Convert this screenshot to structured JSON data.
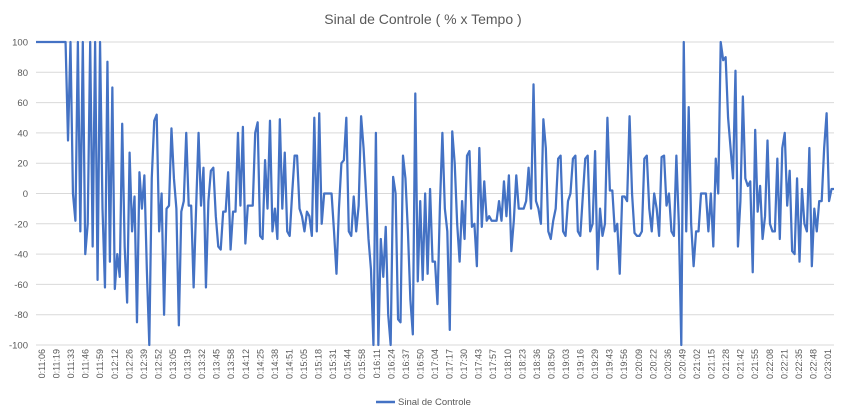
{
  "chart_data": {
    "type": "line",
    "title": "Sinal de Controle ( % x Tempo )",
    "xlabel": "",
    "ylabel": "",
    "ylim": [
      -100,
      100
    ],
    "yticks": [
      100,
      80,
      60,
      40,
      20,
      0,
      -20,
      -40,
      -60,
      -80,
      -100
    ],
    "x_tick_labels": [
      "0:11:06",
      "0:11:19",
      "0:11:33",
      "0:11:46",
      "0:11:59",
      "0:12:12",
      "0:12:26",
      "0:12:39",
      "0:12:52",
      "0:13:05",
      "0:13:19",
      "0:13:32",
      "0:13:45",
      "0:13:58",
      "0:14:12",
      "0:14:25",
      "0:14:38",
      "0:14:51",
      "0:15:05",
      "0:15:18",
      "0:15:31",
      "0:15:44",
      "0:15:58",
      "0:16:11",
      "0:16:24",
      "0:16:37",
      "0:16:50",
      "0:17:04",
      "0:17:17",
      "0:17:30",
      "0:17:43",
      "0:17:57",
      "0:18:10",
      "0:18:23",
      "0:18:36",
      "0:18:50",
      "0:19:03",
      "0:19:16",
      "0:19:29",
      "0:19:43",
      "0:19:56",
      "0:20:09",
      "0:20:22",
      "0:20:36",
      "0:20:49",
      "0:21:02",
      "0:21:15",
      "0:21:28",
      "0:21:42",
      "0:21:55",
      "0:22:08",
      "0:22:21",
      "0:22:35",
      "0:22:48",
      "0:23:01"
    ],
    "grid": true,
    "legend_position": "bottom",
    "colors": {
      "series": "#4472c4",
      "grid": "#d9d9d9",
      "text": "#595959"
    },
    "series": [
      {
        "name": "Sinal de Controle",
        "values": [
          100,
          100,
          100,
          100,
          100,
          100,
          100,
          100,
          100,
          100,
          100,
          100,
          100,
          35,
          100,
          0,
          -18,
          100,
          -25,
          100,
          -40,
          -20,
          100,
          -35,
          100,
          -57,
          100,
          -10,
          -62,
          87,
          -45,
          70,
          -63,
          -40,
          -55,
          46,
          -35,
          -72,
          27,
          -25,
          -2,
          -85,
          14,
          -10,
          12,
          -50,
          -100,
          10,
          48,
          52,
          -25,
          0,
          -80,
          -10,
          -8,
          43,
          10,
          -10,
          -87,
          -12,
          -5,
          40,
          -8,
          -8,
          -62,
          -10,
          40,
          -8,
          17,
          -62,
          -5,
          15,
          17,
          -15,
          -35,
          -37,
          -12,
          -12,
          14,
          -37,
          -12,
          -12,
          40,
          -8,
          44,
          -33,
          -8,
          -8,
          -8,
          40,
          47,
          -28,
          -30,
          22,
          -10,
          48,
          -25,
          -10,
          -30,
          49,
          -10,
          27,
          -25,
          -28,
          0,
          25,
          25,
          -10,
          -15,
          -25,
          -12,
          -15,
          -28,
          50,
          -25,
          53,
          -20,
          0,
          0,
          0,
          0,
          -25,
          -53,
          -10,
          20,
          22,
          50,
          -25,
          -28,
          -2,
          -25,
          -8,
          51,
          30,
          0,
          -30,
          -50,
          -100,
          40,
          -100,
          -30,
          -55,
          -22,
          -80,
          -100,
          11,
          0,
          -83,
          -85,
          25,
          10,
          -25,
          -70,
          -93,
          66,
          -58,
          -5,
          -57,
          0,
          -53,
          3,
          -45,
          -45,
          -73,
          -8,
          40,
          -10,
          -25,
          -90,
          41,
          20,
          -20,
          -45,
          -5,
          -30,
          25,
          28,
          -22,
          -20,
          -48,
          30,
          -22,
          8,
          -18,
          -15,
          -18,
          -18,
          -18,
          -5,
          -18,
          8,
          -15,
          12,
          -38,
          -18,
          12,
          -10,
          -10,
          -10,
          -5,
          17,
          -10,
          72,
          -5,
          -10,
          -20,
          49,
          30,
          -25,
          -30,
          -18,
          -10,
          23,
          25,
          -25,
          -28,
          -5,
          0,
          23,
          25,
          -25,
          -28,
          -2,
          23,
          25,
          -25,
          -20,
          28,
          -50,
          -10,
          -28,
          -20,
          50,
          2,
          2,
          -25,
          -20,
          -53,
          -2,
          -2,
          -5,
          51,
          0,
          -26,
          -28,
          -28,
          -25,
          23,
          25,
          -10,
          -25,
          0,
          -10,
          -28,
          24,
          25,
          -8,
          0,
          -25,
          -28,
          25,
          -20,
          -100,
          100,
          -25,
          57,
          -20,
          -48,
          -25,
          -25,
          0,
          0,
          0,
          -25,
          0,
          -35,
          23,
          0,
          100,
          88,
          90,
          50,
          30,
          10,
          81,
          -35,
          -5,
          64,
          10,
          5,
          8,
          -52,
          42,
          -12,
          5,
          -30,
          -15,
          35,
          -20,
          -25,
          -25,
          23,
          -30,
          30,
          40,
          -8,
          15,
          -38,
          -40,
          10,
          -45,
          3,
          -20,
          -25,
          30,
          -48,
          -10,
          -25,
          -5,
          -5,
          30,
          53,
          -5,
          3,
          3
        ]
      }
    ]
  }
}
